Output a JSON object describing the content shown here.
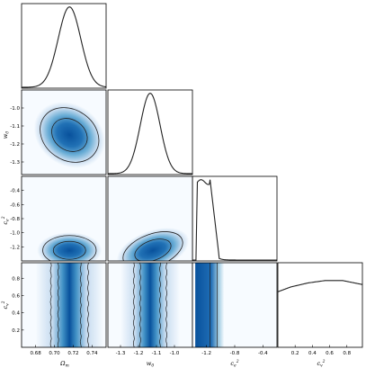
{
  "chart_data": {
    "type": "corner",
    "parameters": [
      {
        "key": "om",
        "label": "Ω_m",
        "range": [
          0.665,
          0.755
        ],
        "ticks": [
          "0.68",
          "0.70",
          "0.72",
          "0.74"
        ],
        "tick_values": [
          0.68,
          0.7,
          0.72,
          0.74
        ],
        "mean": 0.716,
        "sd": 0.012
      },
      {
        "key": "w0",
        "label": "w_0",
        "range": [
          -1.37,
          -0.9
        ],
        "ticks": [
          "-1.3",
          "-1.2",
          "-1.1",
          "-1.0"
        ],
        "tick_values": [
          -1.3,
          -1.2,
          -1.1,
          -1.0
        ],
        "mean": -1.135,
        "sd": 0.055
      },
      {
        "key": "ce",
        "label": "c_e^2",
        "range": [
          -1.4,
          -0.2
        ],
        "ticks": [
          "-1.2",
          "-0.8",
          "-0.4"
        ],
        "tick_values": [
          -1.2,
          -0.8,
          -0.4
        ],
        "y_ticks": [
          "-0.4",
          "-0.6",
          "-0.8",
          "-1.0",
          "-1.2"
        ],
        "y_tick_values": [
          -0.4,
          -0.6,
          -0.8,
          -1.0,
          -1.2
        ]
      },
      {
        "key": "cv",
        "label": "c_v^2",
        "range": [
          0.0,
          0.98
        ],
        "ticks": [
          "0.2",
          "0.4",
          "0.6",
          "0.8"
        ],
        "tick_values": [
          0.2,
          0.4,
          0.6,
          0.8
        ],
        "y_ticks": [
          "0.2",
          "0.4",
          "0.6",
          "0.8"
        ],
        "y_tick_values": [
          0.2,
          0.4,
          0.6,
          0.8
        ]
      }
    ],
    "diagonal": [
      {
        "param": "om",
        "shape": "gaussian",
        "mean": 0.716,
        "sd": 0.012
      },
      {
        "param": "w0",
        "shape": "gaussian",
        "mean": -1.135,
        "sd": 0.055
      },
      {
        "param": "ce",
        "shape": "truncated",
        "edge": -1.33,
        "plateau_to": -1.15,
        "fall_to": -1.02
      },
      {
        "param": "cv",
        "shape": "flat",
        "points": [
          [
            0.0,
            0.68
          ],
          [
            0.15,
            0.74
          ],
          [
            0.35,
            0.79
          ],
          [
            0.55,
            0.82
          ],
          [
            0.75,
            0.82
          ],
          [
            0.98,
            0.77
          ]
        ]
      }
    ],
    "pairs": [
      {
        "x": "om",
        "y": "w0",
        "center": [
          0.716,
          -1.15
        ],
        "rho": 0.35,
        "contour_radii": [
          1.0,
          1.65
        ]
      },
      {
        "x": "om",
        "y": "ce",
        "center": [
          0.716,
          -1.25
        ],
        "rho": 0.0,
        "contour_radii": [
          1.0,
          1.65
        ]
      },
      {
        "x": "w0",
        "y": "ce",
        "center": [
          -1.12,
          -1.25
        ],
        "rho": 0.45,
        "contour_radii": [
          1.0,
          1.65
        ]
      },
      {
        "x": "om",
        "y": "cv",
        "band": true
      },
      {
        "x": "w0",
        "y": "cv",
        "band": true
      },
      {
        "x": "ce",
        "y": "cv",
        "band": true
      }
    ],
    "colors": {
      "fill": "#08519c",
      "line": "#222222",
      "bg": "#f7fbff"
    }
  }
}
